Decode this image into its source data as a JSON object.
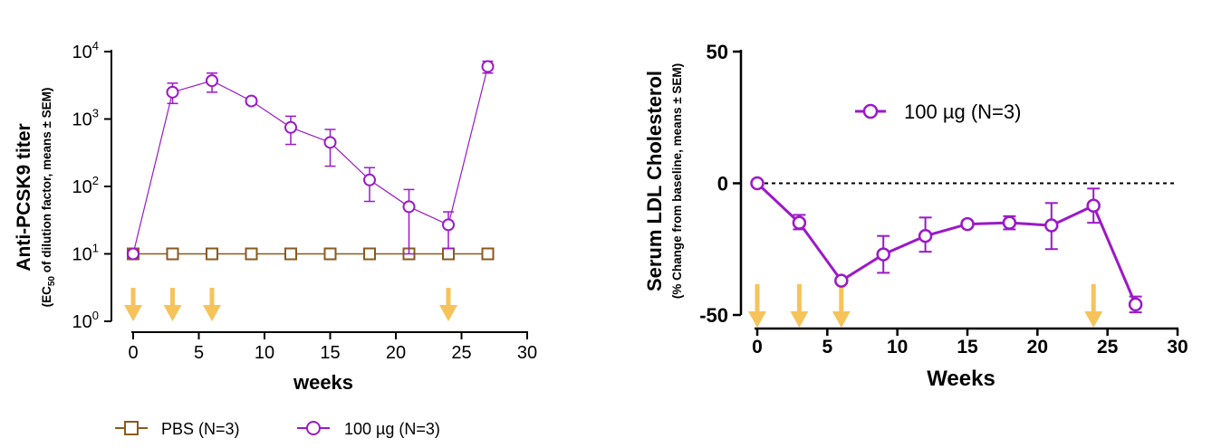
{
  "chart_data": [
    {
      "type": "line",
      "yscale": "log",
      "ylabel": "Anti-PCSK9 titer",
      "ylabel_sub_prefix": "(EC",
      "ylabel_sub_subscript": "50",
      "ylabel_sub_rest": " of dilution factor, means ± SEM)",
      "xlabel": "weeks",
      "xlim": [
        0,
        30
      ],
      "ylim": [
        1,
        10000
      ],
      "xticks": [
        "0",
        "5",
        "10",
        "15",
        "20",
        "25",
        "30"
      ],
      "yticks": [
        {
          "base": "10",
          "exp": "0"
        },
        {
          "base": "10",
          "exp": "1"
        },
        {
          "base": "10",
          "exp": "2"
        },
        {
          "base": "10",
          "exp": "3"
        },
        {
          "base": "10",
          "exp": "4"
        }
      ],
      "dose_weeks": [
        0,
        3,
        6,
        24
      ],
      "series": [
        {
          "name": "PBS (N=3)",
          "marker": "square",
          "color": "#8B5A1E",
          "x": [
            0,
            3,
            6,
            9,
            12,
            15,
            18,
            21,
            24,
            27
          ],
          "y": [
            10,
            10,
            10,
            10,
            10,
            10,
            10,
            10,
            10,
            10
          ]
        },
        {
          "name": "100 µg (N=3)",
          "marker": "circle",
          "color": "#9B19C7",
          "x": [
            0,
            3,
            6,
            9,
            12,
            15,
            18,
            21,
            24,
            27
          ],
          "y": [
            10,
            2500,
            3700,
            1850,
            750,
            450,
            125,
            50,
            27,
            6000
          ],
          "err_low": [
            10,
            1700,
            2500,
            1650,
            420,
            200,
            60,
            10,
            12,
            4800
          ],
          "err_high": [
            10,
            3400,
            4800,
            2050,
            1100,
            700,
            190,
            90,
            42,
            7200
          ]
        }
      ]
    },
    {
      "type": "line",
      "ylabel": "Serum LDL Cholesterol",
      "ylabel_sub": "(% Change from baseline, means ± SEM)",
      "xlabel": "Weeks",
      "xlim": [
        0,
        30
      ],
      "ylim": [
        -50,
        50
      ],
      "xticks": [
        "0",
        "5",
        "10",
        "15",
        "20",
        "25",
        "30"
      ],
      "yticks": [
        "-50",
        "0",
        "50"
      ],
      "reference_line": 0,
      "dose_weeks": [
        0,
        3,
        6,
        24
      ],
      "series": [
        {
          "name": "100 µg (N=3)",
          "marker": "circle",
          "color": "#9B19C7",
          "x": [
            0,
            3,
            6,
            9,
            12,
            15,
            18,
            21,
            24,
            27
          ],
          "y": [
            0,
            -15,
            -37,
            -27,
            -20,
            -15.5,
            -15,
            -16,
            -8.5,
            -46
          ],
          "err_low": [
            0,
            -17.5,
            -38,
            -34,
            -26,
            -16.5,
            -17.5,
            -25,
            -15,
            -49
          ],
          "err_high": [
            0,
            -12,
            -36,
            -20,
            -13,
            -14.5,
            -12.5,
            -7.5,
            -2,
            -43
          ]
        }
      ]
    }
  ],
  "colors": {
    "pbs": "#8B5A1E",
    "dose": "#9B19C7",
    "arrow": "#F6C35A"
  }
}
